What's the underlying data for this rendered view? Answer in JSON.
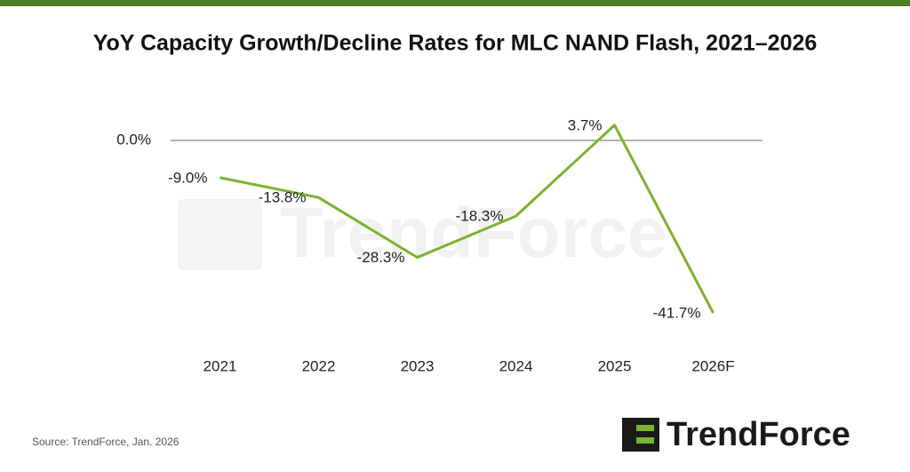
{
  "chart_data": {
    "type": "line",
    "title": "YoY Capacity Growth/Decline Rates for MLC NAND Flash, 2021–2026",
    "categories": [
      "2021",
      "2022",
      "2023",
      "2024",
      "2025",
      "2026F"
    ],
    "series": [
      {
        "name": "MLC NAND Flash",
        "color": "#7ab32e",
        "values": [
          -9.0,
          -13.8,
          -28.3,
          -18.3,
          3.7,
          -41.7
        ],
        "value_labels": [
          "-9.0%",
          "-13.8%",
          "-28.3%",
          "-18.3%",
          "3.7%",
          "-41.7%"
        ]
      }
    ],
    "ylim": [
      -50,
      10
    ],
    "yticks": [
      {
        "value": 0,
        "label": "0.0%"
      }
    ],
    "source": "Source: TrendForce, Jan. 2026",
    "watermark": "TrendForce",
    "logo": "TrendForce"
  }
}
